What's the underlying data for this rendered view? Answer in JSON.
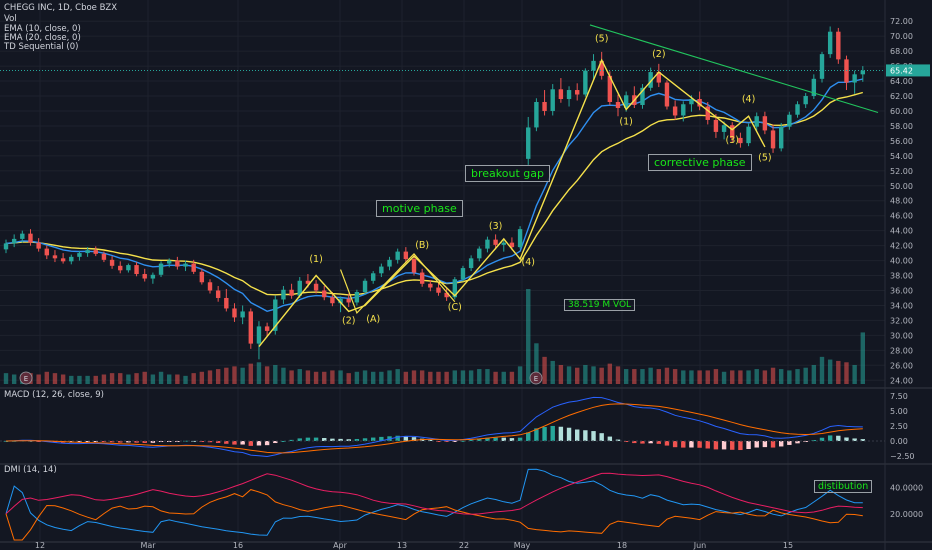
{
  "legend": {
    "symbol": "CHEGG INC, 1D, Cboe BZX",
    "vol": "Vol",
    "ema10": "EMA (10, close, 0)",
    "ema20": "EMA (20, close, 0)",
    "td": "TD Sequential (0)",
    "macd": "MACD (12, 26, close, 9)",
    "dmi": "DMI (14, 14)"
  },
  "annotations": {
    "motive": "motive phase",
    "breakout": "breakout gap",
    "corrective": "corrective phase",
    "volume": "38.519 M VOL",
    "distribution": "distibution"
  },
  "last_price": "65.42",
  "x_labels": [
    "12",
    "Mar",
    "16",
    "Apr",
    "13",
    "22",
    "May",
    "18",
    "Jun",
    "15"
  ],
  "wave_labels": [
    "(1)",
    "(2)",
    "(A)",
    "(B)",
    "(C)",
    "(3)",
    "(4)",
    "(5)",
    "(1)",
    "(2)",
    "(3)",
    "(4)",
    "(5)"
  ],
  "earnings_marker": "E",
  "chart_data": {
    "type": "candlestick",
    "price_axis": {
      "ticks": [
        24,
        26,
        28,
        30,
        32,
        34,
        36,
        38,
        40,
        42,
        44,
        46,
        48,
        50,
        52,
        54,
        56,
        58,
        60,
        62,
        64,
        66,
        68,
        70,
        72
      ],
      "range": [
        23.5,
        73.5
      ]
    },
    "macd_axis": {
      "ticks": [
        "7.50",
        "5.00",
        "2.50",
        "0.00",
        "−2.50"
      ],
      "range": [
        -3.5,
        8.5
      ]
    },
    "dmi_axis": {
      "ticks": [
        "40.0000",
        "20.0000"
      ],
      "range": [
        0,
        55
      ]
    },
    "candles": [
      {
        "o": 41.5,
        "h": 42.8,
        "l": 41.0,
        "c": 42.3,
        "v": 8
      },
      {
        "o": 42.3,
        "h": 43.5,
        "l": 41.8,
        "c": 42.9,
        "v": 7
      },
      {
        "o": 42.9,
        "h": 44.0,
        "l": 42.4,
        "c": 43.6,
        "v": 7
      },
      {
        "o": 43.6,
        "h": 44.2,
        "l": 42.0,
        "c": 42.4,
        "v": 8
      },
      {
        "o": 42.4,
        "h": 43.0,
        "l": 41.2,
        "c": 41.6,
        "v": 7
      },
      {
        "o": 41.6,
        "h": 42.0,
        "l": 40.2,
        "c": 40.7,
        "v": 9
      },
      {
        "o": 40.7,
        "h": 41.4,
        "l": 39.8,
        "c": 40.3,
        "v": 8
      },
      {
        "o": 40.3,
        "h": 41.0,
        "l": 39.6,
        "c": 39.9,
        "v": 7
      },
      {
        "o": 39.9,
        "h": 40.8,
        "l": 39.5,
        "c": 40.5,
        "v": 6
      },
      {
        "o": 40.5,
        "h": 41.3,
        "l": 40.0,
        "c": 41.0,
        "v": 6
      },
      {
        "o": 41.0,
        "h": 41.8,
        "l": 40.5,
        "c": 41.4,
        "v": 6
      },
      {
        "o": 41.4,
        "h": 41.9,
        "l": 40.6,
        "c": 40.9,
        "v": 6
      },
      {
        "o": 40.9,
        "h": 41.2,
        "l": 39.8,
        "c": 40.1,
        "v": 7
      },
      {
        "o": 40.1,
        "h": 40.6,
        "l": 38.9,
        "c": 39.3,
        "v": 8
      },
      {
        "o": 39.3,
        "h": 39.9,
        "l": 38.3,
        "c": 38.7,
        "v": 8
      },
      {
        "o": 38.7,
        "h": 39.6,
        "l": 38.4,
        "c": 39.4,
        "v": 7
      },
      {
        "o": 39.4,
        "h": 39.8,
        "l": 37.9,
        "c": 38.2,
        "v": 8
      },
      {
        "o": 38.2,
        "h": 38.9,
        "l": 37.2,
        "c": 37.6,
        "v": 9
      },
      {
        "o": 37.6,
        "h": 38.4,
        "l": 36.9,
        "c": 38.1,
        "v": 7
      },
      {
        "o": 38.1,
        "h": 39.9,
        "l": 37.8,
        "c": 39.6,
        "v": 9
      },
      {
        "o": 39.6,
        "h": 40.3,
        "l": 39.1,
        "c": 40.0,
        "v": 7
      },
      {
        "o": 40.0,
        "h": 40.5,
        "l": 38.8,
        "c": 39.2,
        "v": 7
      },
      {
        "o": 39.2,
        "h": 40.0,
        "l": 38.6,
        "c": 39.6,
        "v": 6
      },
      {
        "o": 39.6,
        "h": 40.1,
        "l": 38.2,
        "c": 38.5,
        "v": 8
      },
      {
        "o": 38.5,
        "h": 38.9,
        "l": 36.8,
        "c": 37.1,
        "v": 9
      },
      {
        "o": 37.1,
        "h": 37.5,
        "l": 35.6,
        "c": 36.0,
        "v": 10
      },
      {
        "o": 36.0,
        "h": 36.6,
        "l": 34.5,
        "c": 35.0,
        "v": 11
      },
      {
        "o": 35.0,
        "h": 36.2,
        "l": 33.2,
        "c": 33.6,
        "v": 12
      },
      {
        "o": 33.6,
        "h": 34.3,
        "l": 31.8,
        "c": 32.4,
        "v": 13
      },
      {
        "o": 32.4,
        "h": 34.0,
        "l": 31.5,
        "c": 33.2,
        "v": 12
      },
      {
        "o": 33.2,
        "h": 33.6,
        "l": 28.2,
        "c": 28.9,
        "v": 15
      },
      {
        "o": 28.9,
        "h": 31.9,
        "l": 26.8,
        "c": 31.2,
        "v": 16
      },
      {
        "o": 31.2,
        "h": 31.7,
        "l": 29.9,
        "c": 30.6,
        "v": 13
      },
      {
        "o": 30.6,
        "h": 35.3,
        "l": 30.1,
        "c": 34.8,
        "v": 14
      },
      {
        "o": 34.8,
        "h": 36.6,
        "l": 34.2,
        "c": 36.1,
        "v": 12
      },
      {
        "o": 36.1,
        "h": 36.9,
        "l": 34.9,
        "c": 35.3,
        "v": 10
      },
      {
        "o": 35.3,
        "h": 37.8,
        "l": 35.0,
        "c": 37.3,
        "v": 11
      },
      {
        "o": 37.3,
        "h": 38.2,
        "l": 36.4,
        "c": 36.9,
        "v": 10
      },
      {
        "o": 36.9,
        "h": 37.4,
        "l": 35.6,
        "c": 36.0,
        "v": 9
      },
      {
        "o": 36.0,
        "h": 36.6,
        "l": 34.7,
        "c": 35.1,
        "v": 9
      },
      {
        "o": 35.1,
        "h": 35.8,
        "l": 33.9,
        "c": 34.3,
        "v": 10
      },
      {
        "o": 34.3,
        "h": 35.2,
        "l": 33.1,
        "c": 34.9,
        "v": 10
      },
      {
        "o": 34.9,
        "h": 35.6,
        "l": 33.8,
        "c": 34.4,
        "v": 8
      },
      {
        "o": 34.4,
        "h": 36.1,
        "l": 34.0,
        "c": 35.8,
        "v": 9
      },
      {
        "o": 35.8,
        "h": 37.6,
        "l": 35.4,
        "c": 37.3,
        "v": 10
      },
      {
        "o": 37.3,
        "h": 38.6,
        "l": 36.9,
        "c": 38.3,
        "v": 9
      },
      {
        "o": 38.3,
        "h": 39.6,
        "l": 37.8,
        "c": 39.2,
        "v": 9
      },
      {
        "o": 39.2,
        "h": 40.5,
        "l": 38.7,
        "c": 40.1,
        "v": 10
      },
      {
        "o": 40.1,
        "h": 41.6,
        "l": 39.6,
        "c": 41.2,
        "v": 11
      },
      {
        "o": 41.2,
        "h": 41.8,
        "l": 39.7,
        "c": 40.2,
        "v": 9
      },
      {
        "o": 40.2,
        "h": 40.8,
        "l": 38.0,
        "c": 38.4,
        "v": 10
      },
      {
        "o": 38.4,
        "h": 38.9,
        "l": 36.5,
        "c": 36.9,
        "v": 10
      },
      {
        "o": 36.9,
        "h": 37.4,
        "l": 35.9,
        "c": 36.4,
        "v": 9
      },
      {
        "o": 36.4,
        "h": 37.2,
        "l": 35.3,
        "c": 35.7,
        "v": 9
      },
      {
        "o": 35.7,
        "h": 36.3,
        "l": 34.6,
        "c": 35.1,
        "v": 9
      },
      {
        "o": 35.1,
        "h": 37.8,
        "l": 34.8,
        "c": 37.5,
        "v": 10
      },
      {
        "o": 37.5,
        "h": 39.3,
        "l": 37.2,
        "c": 39.0,
        "v": 10
      },
      {
        "o": 39.0,
        "h": 40.7,
        "l": 38.6,
        "c": 40.3,
        "v": 10
      },
      {
        "o": 40.3,
        "h": 41.9,
        "l": 39.9,
        "c": 41.6,
        "v": 11
      },
      {
        "o": 41.6,
        "h": 43.2,
        "l": 41.1,
        "c": 42.8,
        "v": 11
      },
      {
        "o": 42.8,
        "h": 43.5,
        "l": 41.5,
        "c": 42.1,
        "v": 9
      },
      {
        "o": 42.1,
        "h": 42.9,
        "l": 41.2,
        "c": 42.4,
        "v": 9
      },
      {
        "o": 42.4,
        "h": 43.1,
        "l": 41.4,
        "c": 41.8,
        "v": 9
      },
      {
        "o": 41.8,
        "h": 44.6,
        "l": 41.6,
        "c": 44.2,
        "v": 13
      },
      {
        "o": 53.6,
        "h": 59.2,
        "l": 52.8,
        "c": 57.8,
        "v": 70
      },
      {
        "o": 57.8,
        "h": 61.7,
        "l": 57.3,
        "c": 61.2,
        "v": 30
      },
      {
        "o": 61.2,
        "h": 62.8,
        "l": 59.4,
        "c": 60.0,
        "v": 20
      },
      {
        "o": 60.0,
        "h": 63.6,
        "l": 59.4,
        "c": 62.9,
        "v": 17
      },
      {
        "o": 62.9,
        "h": 64.4,
        "l": 61.1,
        "c": 61.6,
        "v": 14
      },
      {
        "o": 61.6,
        "h": 63.3,
        "l": 60.6,
        "c": 62.8,
        "v": 13
      },
      {
        "o": 62.8,
        "h": 63.7,
        "l": 61.4,
        "c": 62.2,
        "v": 12
      },
      {
        "o": 62.2,
        "h": 65.7,
        "l": 61.9,
        "c": 65.4,
        "v": 14
      },
      {
        "o": 65.4,
        "h": 67.6,
        "l": 64.3,
        "c": 66.7,
        "v": 13
      },
      {
        "o": 66.7,
        "h": 67.9,
        "l": 64.2,
        "c": 64.7,
        "v": 12
      },
      {
        "o": 64.7,
        "h": 65.3,
        "l": 60.8,
        "c": 61.2,
        "v": 15
      },
      {
        "o": 61.2,
        "h": 62.2,
        "l": 59.3,
        "c": 60.4,
        "v": 13
      },
      {
        "o": 60.4,
        "h": 62.6,
        "l": 59.9,
        "c": 62.1,
        "v": 11
      },
      {
        "o": 62.1,
        "h": 63.3,
        "l": 60.4,
        "c": 60.8,
        "v": 11
      },
      {
        "o": 60.8,
        "h": 63.6,
        "l": 60.3,
        "c": 63.1,
        "v": 11
      },
      {
        "o": 63.1,
        "h": 65.8,
        "l": 62.7,
        "c": 65.2,
        "v": 12
      },
      {
        "o": 65.2,
        "h": 66.3,
        "l": 63.2,
        "c": 63.8,
        "v": 11
      },
      {
        "o": 63.8,
        "h": 64.1,
        "l": 60.2,
        "c": 60.6,
        "v": 12
      },
      {
        "o": 60.6,
        "h": 61.4,
        "l": 58.8,
        "c": 59.4,
        "v": 11
      },
      {
        "o": 59.4,
        "h": 61.3,
        "l": 58.6,
        "c": 60.9,
        "v": 10
      },
      {
        "o": 60.9,
        "h": 62.1,
        "l": 59.9,
        "c": 61.6,
        "v": 10
      },
      {
        "o": 61.6,
        "h": 62.6,
        "l": 60.1,
        "c": 60.6,
        "v": 10
      },
      {
        "o": 60.6,
        "h": 61.2,
        "l": 58.2,
        "c": 58.8,
        "v": 10
      },
      {
        "o": 58.8,
        "h": 59.6,
        "l": 56.4,
        "c": 57.2,
        "v": 11
      },
      {
        "o": 57.2,
        "h": 58.6,
        "l": 56.2,
        "c": 58.1,
        "v": 9
      },
      {
        "o": 58.1,
        "h": 58.5,
        "l": 55.8,
        "c": 56.4,
        "v": 10
      },
      {
        "o": 56.4,
        "h": 57.1,
        "l": 55.1,
        "c": 55.7,
        "v": 10
      },
      {
        "o": 55.7,
        "h": 58.3,
        "l": 55.3,
        "c": 57.9,
        "v": 10
      },
      {
        "o": 57.9,
        "h": 59.8,
        "l": 57.4,
        "c": 59.3,
        "v": 11
      },
      {
        "o": 59.3,
        "h": 59.9,
        "l": 56.9,
        "c": 57.4,
        "v": 10
      },
      {
        "o": 57.4,
        "h": 58.2,
        "l": 54.4,
        "c": 55.0,
        "v": 12
      },
      {
        "o": 55.0,
        "h": 58.4,
        "l": 54.6,
        "c": 57.9,
        "v": 11
      },
      {
        "o": 57.9,
        "h": 59.9,
        "l": 57.5,
        "c": 59.5,
        "v": 10
      },
      {
        "o": 59.5,
        "h": 61.3,
        "l": 59.1,
        "c": 60.9,
        "v": 11
      },
      {
        "o": 60.9,
        "h": 62.4,
        "l": 60.4,
        "c": 62.0,
        "v": 12
      },
      {
        "o": 62.0,
        "h": 64.9,
        "l": 61.6,
        "c": 64.3,
        "v": 14
      },
      {
        "o": 64.3,
        "h": 67.9,
        "l": 63.8,
        "c": 67.6,
        "v": 20
      },
      {
        "o": 67.6,
        "h": 71.3,
        "l": 67.1,
        "c": 70.6,
        "v": 18
      },
      {
        "o": 70.6,
        "h": 71.1,
        "l": 66.3,
        "c": 66.9,
        "v": 17
      },
      {
        "o": 66.9,
        "h": 67.4,
        "l": 62.8,
        "c": 63.8,
        "v": 16
      },
      {
        "o": 63.8,
        "h": 65.4,
        "l": 62.3,
        "c": 64.9,
        "v": 14
      },
      {
        "o": 64.9,
        "h": 66.0,
        "l": 63.9,
        "c": 65.4,
        "v": 38
      }
    ]
  }
}
